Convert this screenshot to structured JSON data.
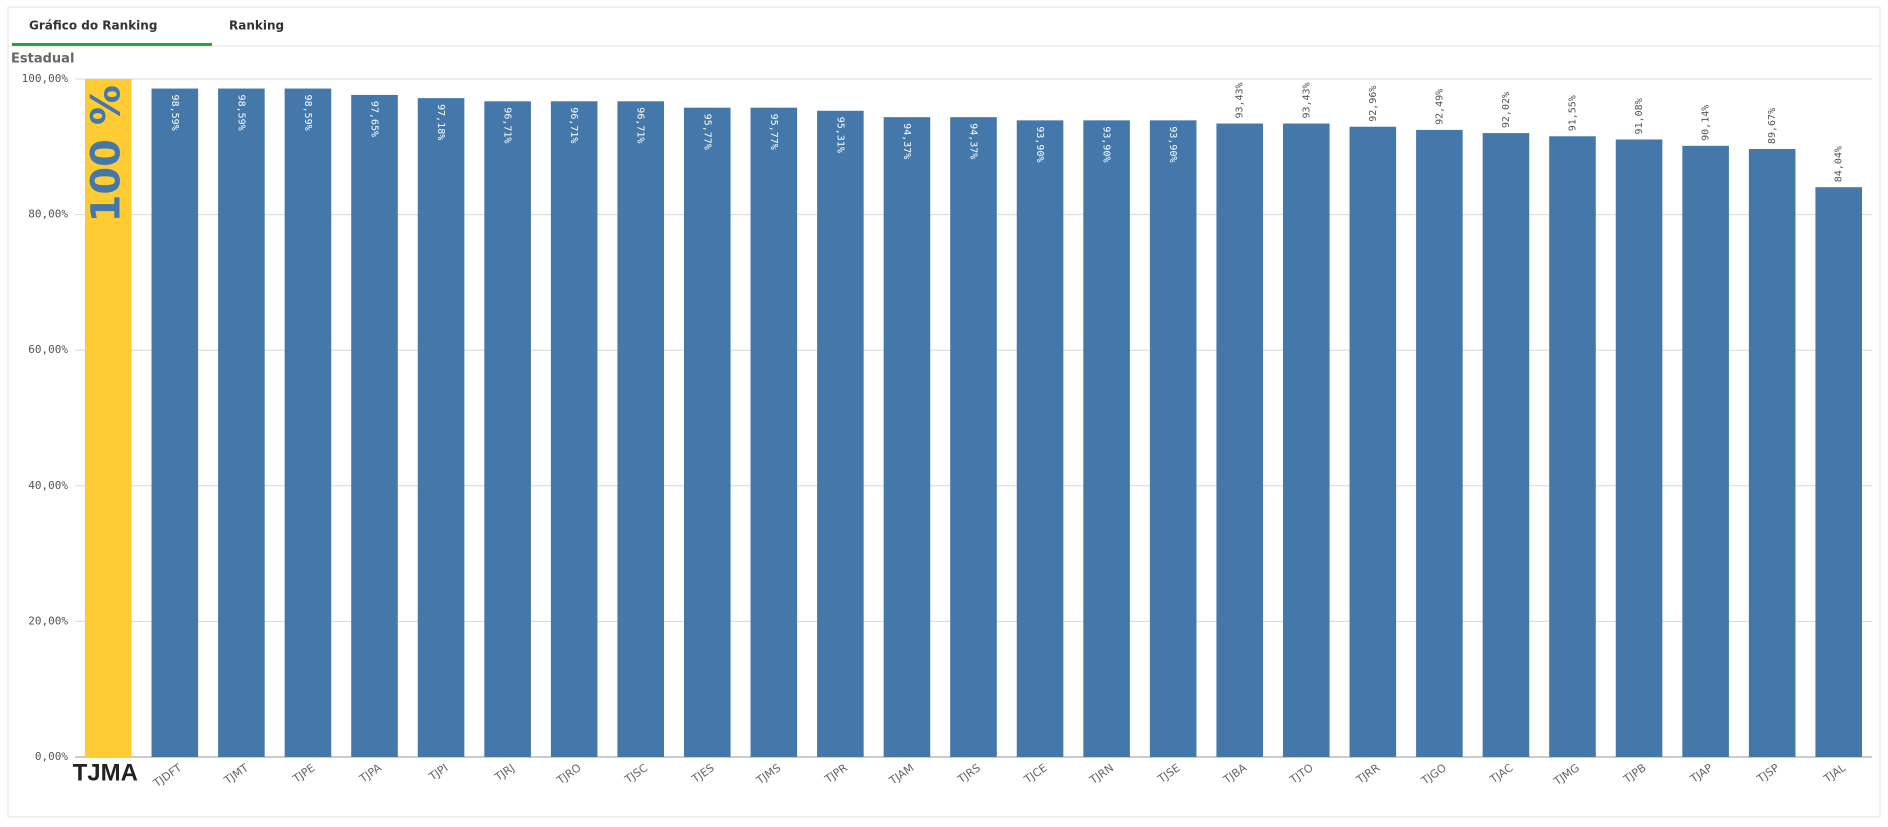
{
  "tabs": [
    "Gráfico do Ranking",
    "Ranking"
  ],
  "chart_data": {
    "type": "bar",
    "title": "Estadual",
    "categories": [
      "TJMA",
      "TJDFT",
      "TJMT",
      "TJPE",
      "TJPA",
      "TJPI",
      "TJRJ",
      "TJRO",
      "TJSC",
      "TJES",
      "TJMS",
      "TJPR",
      "TJAM",
      "TJRS",
      "TJCE",
      "TJRN",
      "TJSE",
      "TJBA",
      "TJTO",
      "TJRR",
      "TJGO",
      "TJAC",
      "TJMG",
      "TJPB",
      "TJAP",
      "TJSP",
      "TJAL"
    ],
    "values": [
      100,
      98.59,
      98.59,
      98.59,
      97.65,
      97.18,
      96.71,
      96.71,
      96.71,
      95.77,
      95.77,
      95.31,
      94.37,
      94.37,
      93.9,
      93.9,
      93.9,
      93.43,
      93.43,
      92.96,
      92.49,
      92.02,
      91.55,
      91.08,
      90.14,
      89.67,
      84.04
    ],
    "value_labels": [
      "100 %",
      "98,59%",
      "98,59%",
      "98,59%",
      "97,65%",
      "97,18%",
      "96,71%",
      "96,71%",
      "96,71%",
      "95,77%",
      "95,77%",
      "95,31%",
      "94,37%",
      "94,37%",
      "93,90%",
      "93,90%",
      "93,90%",
      "93,43%",
      "93,43%",
      "92,96%",
      "92,49%",
      "92,02%",
      "91,55%",
      "91,08%",
      "90,14%",
      "89,67%",
      "84,04%"
    ],
    "colors": [
      "#ffcc33",
      "#4477aa",
      "#4477aa",
      "#4477aa",
      "#4477aa",
      "#4477aa",
      "#4477aa",
      "#4477aa",
      "#4477aa",
      "#4477aa",
      "#4477aa",
      "#4477aa",
      "#4477aa",
      "#4477aa",
      "#4477aa",
      "#4477aa",
      "#4477aa",
      "#4477aa",
      "#4477aa",
      "#4477aa",
      "#4477aa",
      "#4477aa",
      "#4477aa",
      "#4477aa",
      "#4477aa",
      "#4477aa",
      "#4477aa"
    ],
    "ylim": [
      0,
      100
    ],
    "yticks": [
      {
        "value": 0,
        "label": "0,00%"
      },
      {
        "value": 20,
        "label": "20,00%"
      },
      {
        "value": 40,
        "label": "40,00%"
      },
      {
        "value": 60,
        "label": "60,00%"
      },
      {
        "value": 80,
        "label": "80,00%"
      },
      {
        "value": 100,
        "label": "100,00%"
      }
    ],
    "grid": true
  }
}
